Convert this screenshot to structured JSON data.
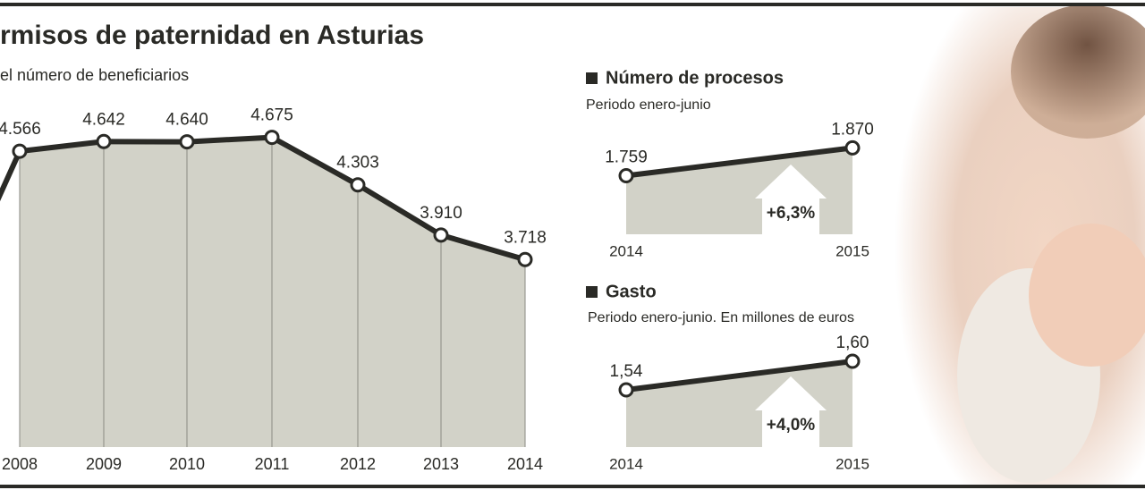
{
  "chart_data": [
    {
      "type": "area-line",
      "title": "rmisos de paternidad en Asturias",
      "subtitle": "el número de beneficiarios",
      "categories": [
        "2008",
        "2009",
        "2010",
        "2011",
        "2012",
        "2013",
        "2014"
      ],
      "values": [
        4566,
        4642,
        4640,
        4675,
        4303,
        3910,
        3718
      ],
      "value_labels": [
        "4.566",
        "4.642",
        "4.640",
        "4.675",
        "4.303",
        "3.910",
        "3.718"
      ],
      "ylim": [
        2250,
        4700
      ],
      "color": "#2a2a26",
      "fill": "#d2d2c8"
    },
    {
      "type": "area-line",
      "title": "Número de procesos",
      "subtitle": "Periodo enero-junio",
      "categories": [
        "2014",
        "2015"
      ],
      "values": [
        1759,
        1870
      ],
      "value_labels": [
        "1.759",
        "1.870"
      ],
      "annotation": "+6,3%",
      "ylim": [
        1525,
        1900
      ],
      "color": "#2a2a26",
      "fill": "#d2d2c8"
    },
    {
      "type": "area-line",
      "title": "Gasto",
      "subtitle": "Periodo enero-junio. En millones de euros",
      "categories": [
        "2014",
        "2015"
      ],
      "values": [
        1.54,
        1.6
      ],
      "value_labels": [
        "1,54",
        "1,60"
      ],
      "annotation": "+4,0%",
      "ylim": [
        1.42,
        1.66
      ],
      "color": "#2a2a26",
      "fill": "#d2d2c8"
    }
  ]
}
